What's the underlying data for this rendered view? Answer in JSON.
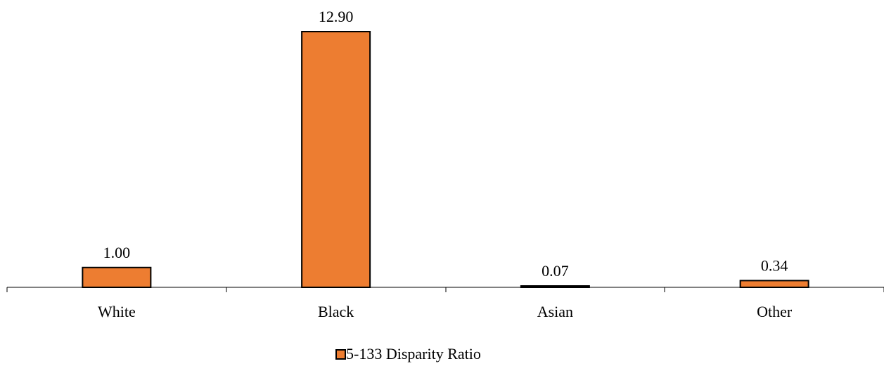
{
  "chart_data": {
    "type": "bar",
    "title": "",
    "xlabel": "",
    "ylabel": "",
    "categories": [
      "White",
      "Black",
      "Asian",
      "Other"
    ],
    "series": [
      {
        "name": "5-133 Disparity Ratio",
        "values": [
          1.0,
          12.9,
          0.07,
          0.34
        ],
        "labels": [
          "1.00",
          "12.90",
          "0.07",
          "0.34"
        ],
        "color": "#ED7D31"
      }
    ],
    "ylim": [
      0,
      12.9
    ],
    "grid": false,
    "y_axis_visible": false,
    "legend_position": "bottom-center"
  }
}
